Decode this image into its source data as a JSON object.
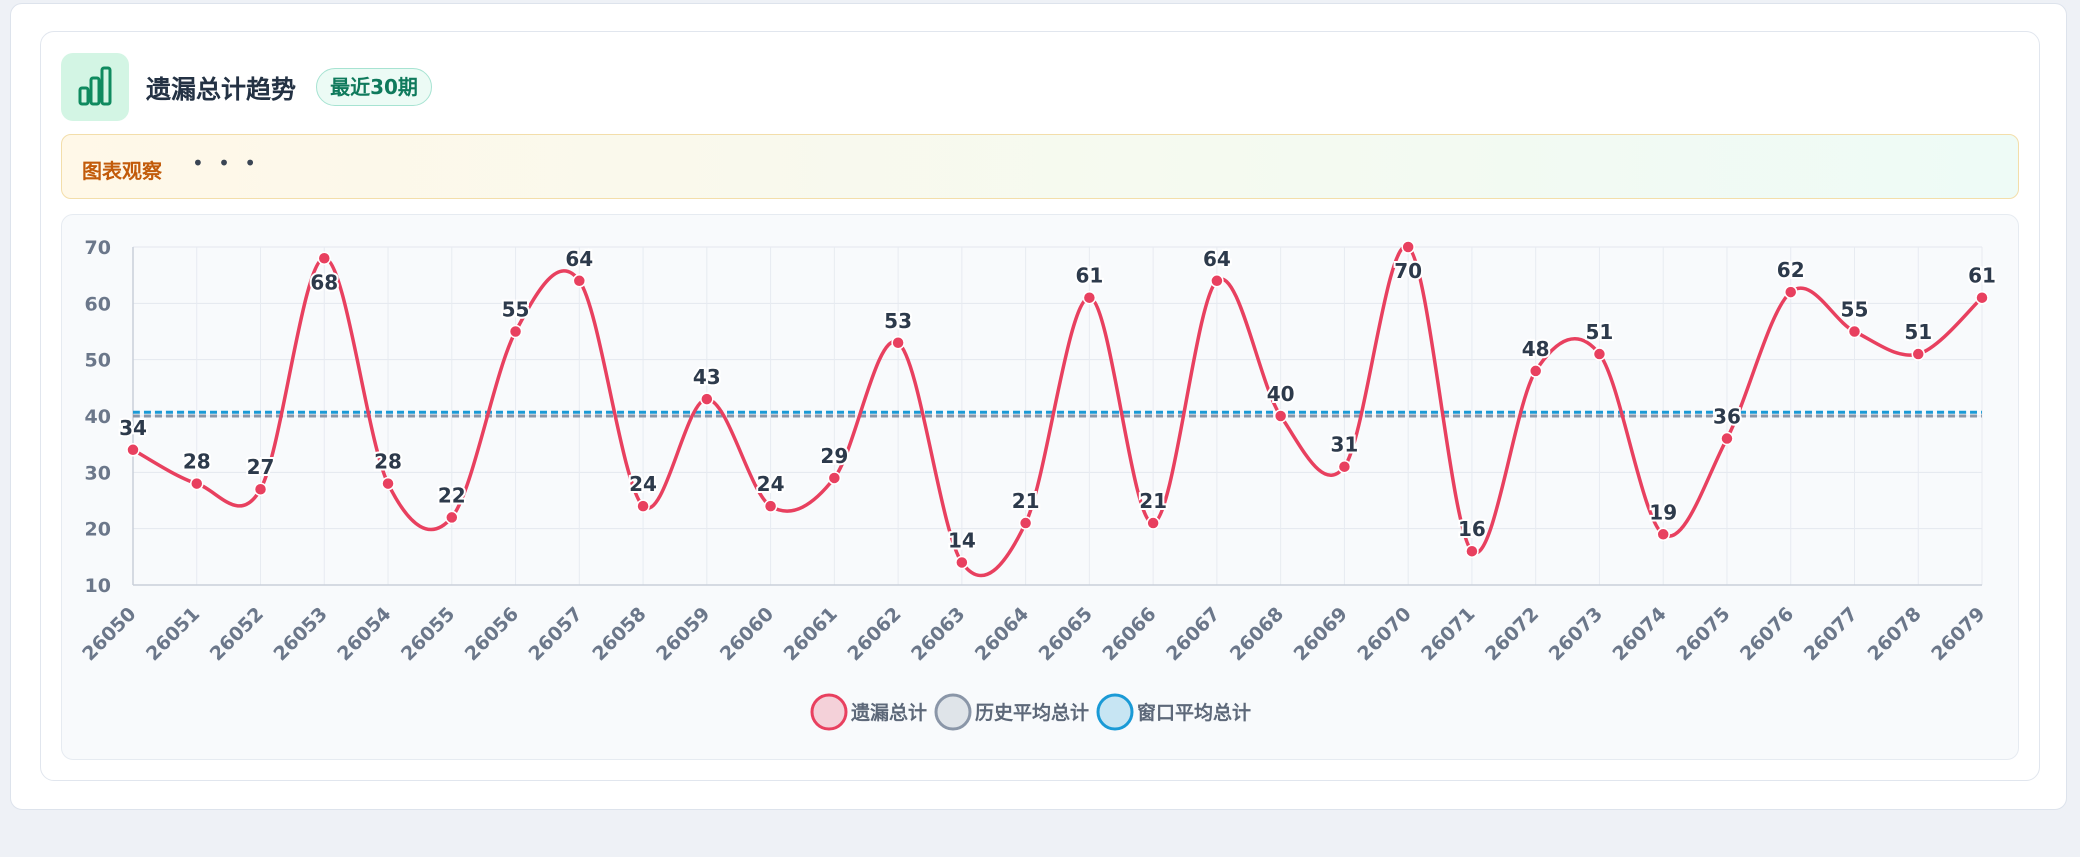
{
  "header": {
    "title": "遗漏总计趋势",
    "badge": "最近30期"
  },
  "observation": {
    "label": "图表观察",
    "text": "• • •"
  },
  "chart_data": {
    "type": "line",
    "categories": [
      "26050",
      "26051",
      "26052",
      "26053",
      "26054",
      "26055",
      "26056",
      "26057",
      "26058",
      "26059",
      "26060",
      "26061",
      "26062",
      "26063",
      "26064",
      "26065",
      "26066",
      "26067",
      "26068",
      "26069",
      "26070",
      "26071",
      "26072",
      "26073",
      "26074",
      "26075",
      "26076",
      "26077",
      "26078",
      "26079"
    ],
    "series": [
      {
        "name": "遗漏总计",
        "color": "#e8405f",
        "values": [
          34,
          28,
          27,
          68,
          28,
          22,
          55,
          64,
          24,
          43,
          24,
          29,
          53,
          14,
          21,
          61,
          21,
          64,
          40,
          31,
          70,
          16,
          48,
          51,
          19,
          36,
          62,
          55,
          51,
          61
        ]
      },
      {
        "name": "历史平均总计",
        "color": "#8a96a8",
        "values": [
          40,
          40,
          40,
          40,
          40,
          40,
          40,
          40,
          40,
          40,
          40,
          40,
          40,
          40,
          40,
          40,
          40,
          40,
          40,
          40,
          40,
          40,
          40,
          40,
          40,
          40,
          40,
          40,
          40,
          40
        ]
      },
      {
        "name": "窗口平均总计",
        "color": "#1a9ad6",
        "values": [
          40.67,
          40.67,
          40.67,
          40.67,
          40.67,
          40.67,
          40.67,
          40.67,
          40.67,
          40.67,
          40.67,
          40.67,
          40.67,
          40.67,
          40.67,
          40.67,
          40.67,
          40.67,
          40.67,
          40.67,
          40.67,
          40.67,
          40.67,
          40.67,
          40.67,
          40.67,
          40.67,
          40.67,
          40.67,
          40.67
        ]
      }
    ],
    "ylim": [
      10,
      70
    ],
    "yticks": [
      10,
      20,
      30,
      40,
      50,
      60,
      70
    ],
    "grid": true
  }
}
